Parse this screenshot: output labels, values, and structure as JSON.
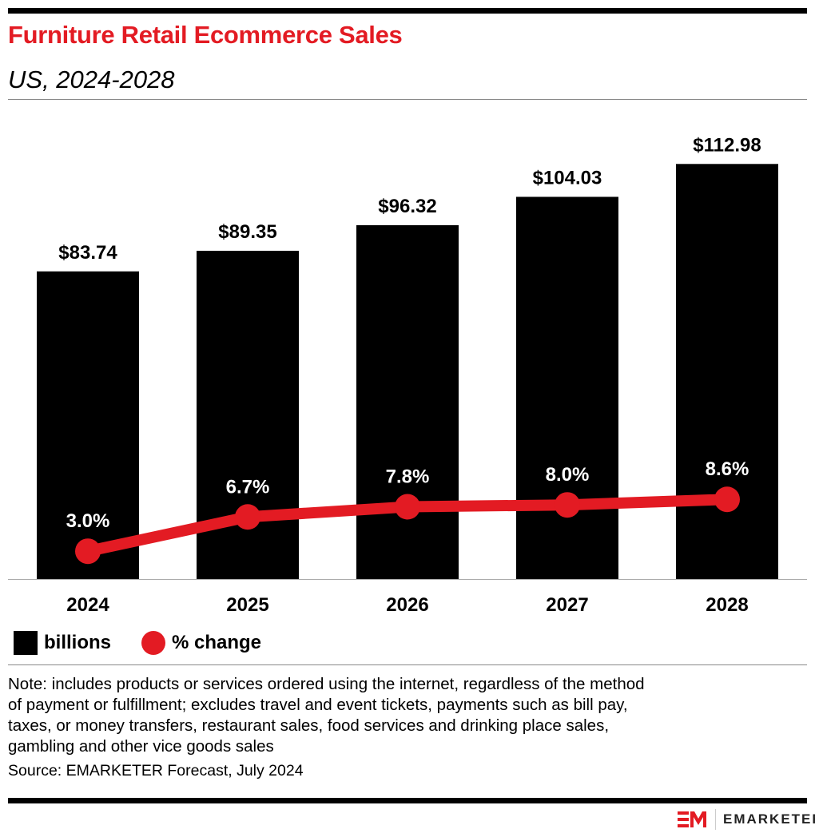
{
  "title": "Furniture Retail Ecommerce Sales",
  "subtitle": "US, 2024-2028",
  "chart_data": {
    "type": "bar+line",
    "categories": [
      "2024",
      "2025",
      "2026",
      "2027",
      "2028"
    ],
    "series": [
      {
        "name": "billions",
        "type": "bar",
        "values": [
          83.74,
          89.35,
          96.32,
          104.03,
          112.98
        ],
        "labels": [
          "$83.74",
          "$89.35",
          "$96.32",
          "$104.03",
          "$112.98"
        ],
        "color": "#000000"
      },
      {
        "name": "% change",
        "type": "line",
        "values": [
          3.0,
          6.7,
          7.8,
          8.0,
          8.6
        ],
        "labels": [
          "3.0%",
          "6.7%",
          "7.8%",
          "8.0%",
          "8.6%"
        ],
        "color": "#e31b23"
      }
    ],
    "legend": "bottom-left",
    "grid": false
  },
  "legend": {
    "bars": "billions",
    "line": "% change"
  },
  "note": [
    "Note: includes products or services ordered using the internet, regardless of the method",
    "of payment or fulfillment; excludes travel and event tickets, payments such as bill pay,",
    "taxes, or money transfers, restaurant sales, food services and drinking place sales,",
    "gambling and other vice goods sales"
  ],
  "source": "Source: EMARKETER Forecast, July 2024",
  "brand": "EMARKETER",
  "colors": {
    "accent": "#e31b23"
  }
}
